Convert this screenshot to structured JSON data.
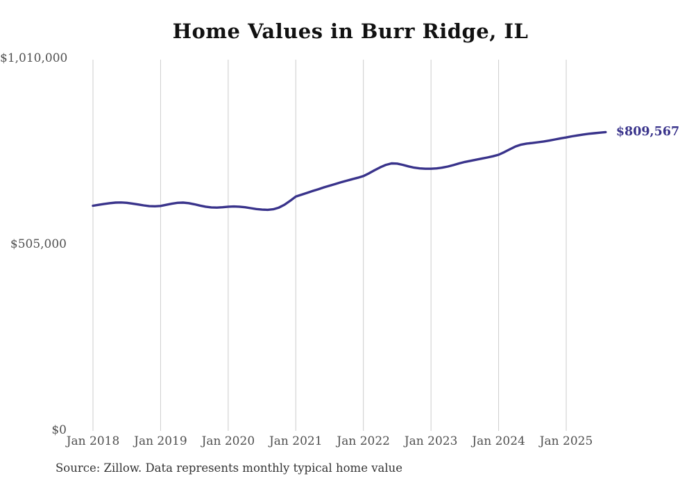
{
  "title": "Home Values in Burr Ridge, IL",
  "current_value_label": "$809,567",
  "source_note": "Source: Zillow. Data represents monthly typical home value",
  "colors": {
    "line": "#39338b",
    "grid": "#cccccc",
    "title": "#111111",
    "axis": "#4f4f4f",
    "source": "#333333"
  },
  "chart_data": {
    "type": "line",
    "title": "Home Values in Burr Ridge, IL",
    "xlabel": "",
    "ylabel": "",
    "ylim": [
      0,
      1010000
    ],
    "grid": "vertical-only",
    "legend": "none",
    "x_start_month": "Jan 2018",
    "x_end_month": "Aug 2025",
    "x_tick_labels": [
      "Jan 2018",
      "Jan 2019",
      "Jan 2020",
      "Jan 2021",
      "Jan 2022",
      "Jan 2023",
      "Jan 2024",
      "Jan 2025"
    ],
    "y_ticks": [
      {
        "value": 0,
        "label": "$0"
      },
      {
        "value": 505000,
        "label": "$505,000"
      },
      {
        "value": 1010000,
        "label": "$1,010,000"
      }
    ],
    "last_point_annotation": "$809,567",
    "series": [
      {
        "name": "Monthly typical home value",
        "values": [
          609500,
          612000,
          614500,
          616500,
          618000,
          618500,
          617500,
          615500,
          613000,
          610500,
          608500,
          608000,
          609000,
          612000,
          615000,
          617500,
          618000,
          616500,
          613500,
          610000,
          607000,
          605000,
          604500,
          605500,
          607000,
          607500,
          607000,
          605500,
          603000,
          600500,
          599000,
          598500,
          600000,
          604500,
          612500,
          623000,
          634500,
          639500,
          644500,
          649500,
          654500,
          659500,
          664000,
          668500,
          673000,
          677500,
          681500,
          685500,
          690000,
          697500,
          706000,
          714000,
          720500,
          724500,
          724000,
          720500,
          716500,
          713000,
          711000,
          710000,
          710000,
          711000,
          713000,
          716000,
          720000,
          724500,
          728500,
          731500,
          734500,
          737500,
          740500,
          744000,
          748000,
          755000,
          763000,
          770500,
          775500,
          778500,
          780000,
          782000,
          784000,
          786500,
          789500,
          792500,
          795000,
          798000,
          800500,
          803000,
          805000,
          806500,
          808000,
          809567
        ]
      }
    ]
  }
}
